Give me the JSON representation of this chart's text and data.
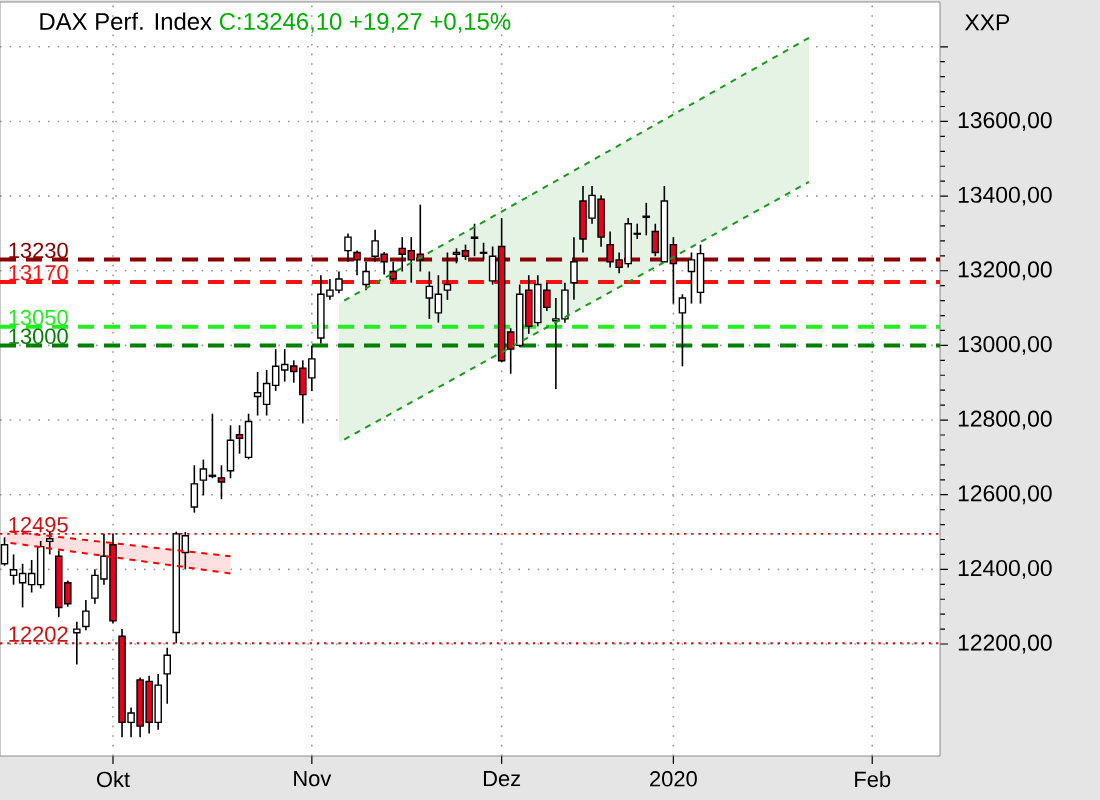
{
  "chart_data": {
    "type": "candlestick",
    "title": "DAX Perf. Index",
    "subtitle": "C:13246,10 +19,27 +0,15%",
    "ylabel": "XXP",
    "categories": [
      null,
      null,
      null,
      null,
      null,
      null,
      null,
      null,
      null,
      null,
      null,
      null,
      "Okt",
      null,
      null,
      null,
      null,
      null,
      null,
      null,
      null,
      null,
      null,
      null,
      null,
      null,
      null,
      null,
      null,
      null,
      null,
      null,
      null,
      null,
      "Nov",
      null,
      null,
      null,
      null,
      null,
      null,
      null,
      null,
      null,
      null,
      null,
      null,
      null,
      null,
      null,
      null,
      null,
      null,
      null,
      null,
      "Dez",
      null,
      null,
      null,
      null,
      null,
      null,
      null,
      null,
      null,
      null,
      null,
      null,
      null,
      null,
      null,
      null,
      null,
      null,
      "2020",
      null,
      null,
      null,
      null,
      null,
      null,
      null,
      null,
      null,
      null,
      null,
      null,
      null,
      null,
      null,
      null,
      null,
      null,
      null,
      null,
      null,
      "Feb",
      null,
      null,
      null,
      null,
      null,
      null,
      null
    ],
    "ohlc": [
      [
        12415,
        12486,
        12410,
        12466
      ],
      [
        12384,
        12440,
        12359,
        12399
      ],
      [
        12364,
        12415,
        12298,
        12389
      ],
      [
        12359,
        12425,
        12338,
        12389
      ],
      [
        12359,
        12476,
        12349,
        12461
      ],
      [
        12475,
        12500,
        12440,
        12482
      ],
      [
        12435,
        12450,
        12272,
        12298
      ],
      [
        12364,
        12370,
        12300,
        12308
      ],
      [
        12230,
        12260,
        12145,
        12240
      ],
      [
        12247,
        12318,
        12237,
        12288
      ],
      [
        12323,
        12400,
        12308,
        12384
      ],
      [
        12374,
        12496,
        12359,
        12435
      ],
      [
        12466,
        12496,
        12255,
        12262
      ],
      [
        12221,
        12240,
        11950,
        11990
      ],
      [
        11990,
        12030,
        11950,
        12015
      ],
      [
        12104,
        12110,
        11950,
        11980
      ],
      [
        12100,
        12115,
        11960,
        11990
      ],
      [
        11990,
        12120,
        11970,
        12090
      ],
      [
        12120,
        12190,
        12040,
        12170
      ],
      [
        12231,
        12501,
        12202,
        12495
      ],
      [
        12445,
        12500,
        12400,
        12490
      ],
      [
        12567,
        12679,
        12552,
        12629
      ],
      [
        12639,
        12694,
        12598,
        12669
      ],
      [
        12649,
        12817,
        12644,
        12652
      ],
      [
        12645,
        12679,
        12588,
        12634
      ],
      [
        12664,
        12786,
        12644,
        12746
      ],
      [
        12761,
        12786,
        12710,
        12751
      ],
      [
        12700,
        12817,
        12695,
        12796
      ],
      [
        12863,
        12929,
        12812,
        12873
      ],
      [
        12842,
        12934,
        12812,
        12898
      ],
      [
        12893,
        12990,
        12878,
        12944
      ],
      [
        12934,
        12990,
        12903,
        12949
      ],
      [
        12945,
        12960,
        12900,
        12930
      ],
      [
        12939,
        12960,
        12791,
        12868
      ],
      [
        12913,
        13000,
        12878,
        12964
      ],
      [
        13020,
        13188,
        13005,
        13137
      ],
      [
        13132,
        13178,
        13122,
        13148
      ],
      [
        13148,
        13198,
        13140,
        13178
      ],
      [
        13254,
        13300,
        13224,
        13290
      ],
      [
        13249,
        13254,
        13188,
        13229
      ],
      [
        13163,
        13224,
        13148,
        13198
      ],
      [
        13239,
        13310,
        13224,
        13280
      ],
      [
        13244,
        13250,
        13190,
        13224
      ],
      [
        13198,
        13224,
        13170,
        13178
      ],
      [
        13260,
        13290,
        13198,
        13244
      ],
      [
        13254,
        13290,
        13168,
        13229
      ],
      [
        13244,
        13377,
        13198,
        13229
      ],
      [
        13127,
        13198,
        13071,
        13158
      ],
      [
        13087,
        13188,
        13061,
        13137
      ],
      [
        13148,
        13249,
        13122,
        13163
      ],
      [
        13244,
        13260,
        13220,
        13249
      ],
      [
        13254,
        13270,
        13229,
        13239
      ],
      [
        13287,
        13326,
        13239,
        13290
      ],
      [
        13247,
        13275,
        13229,
        13249
      ],
      [
        13173,
        13265,
        13163,
        13239
      ],
      [
        13265,
        13341,
        12955,
        12959
      ],
      [
        13036,
        13046,
        12924,
        12990
      ],
      [
        13000,
        13163,
        12995,
        13137
      ],
      [
        13148,
        13188,
        13031,
        13051
      ],
      [
        13061,
        13188,
        13051,
        13163
      ],
      [
        13148,
        13168,
        13092,
        13102
      ],
      [
        13066,
        13127,
        12883,
        13071
      ],
      [
        13071,
        13168,
        13061,
        13148
      ],
      [
        13168,
        13290,
        13122,
        13224
      ],
      [
        13387,
        13427,
        13249,
        13285
      ],
      [
        13341,
        13427,
        13326,
        13402
      ],
      [
        13392,
        13402,
        13264,
        13290
      ],
      [
        13270,
        13305,
        13209,
        13224
      ],
      [
        13229,
        13249,
        13193,
        13209
      ],
      [
        13219,
        13341,
        13209,
        13326
      ],
      [
        13298,
        13326,
        13285,
        13300
      ],
      [
        13343,
        13382,
        13295,
        13346
      ],
      [
        13305,
        13326,
        13239,
        13249
      ],
      [
        13224,
        13427,
        13224,
        13387
      ],
      [
        13270,
        13290,
        13112,
        13219
      ],
      [
        13087,
        13137,
        12944,
        13127
      ],
      [
        13198,
        13249,
        13112,
        13229
      ],
      [
        13142,
        13270,
        13112,
        13246
      ],
      null,
      null,
      null,
      null,
      null,
      null,
      null,
      null,
      null,
      null,
      null,
      null,
      null,
      null,
      null,
      null,
      null,
      null,
      null,
      null,
      null,
      null,
      null,
      null,
      null,
      null
    ],
    "ylim": [
      11900,
      13920
    ],
    "yticks": [
      {
        "value": 12200,
        "label": "12200,00"
      },
      {
        "value": 12400,
        "label": "12400,00"
      },
      {
        "value": 12600,
        "label": "12600,00"
      },
      {
        "value": 12800,
        "label": "12800,00"
      },
      {
        "value": 13000,
        "label": "13000,00"
      },
      {
        "value": 13200,
        "label": "13200,00"
      },
      {
        "value": 13400,
        "label": "13400,00"
      },
      {
        "value": 13600,
        "label": "13600,00"
      },
      {
        "value": 13800,
        "label": null
      }
    ],
    "grid": true,
    "series": [
      {
        "type": "line",
        "color": "#ff0000",
        "line_style": "dashed",
        "values": [
          12503,
          null,
          null,
          null,
          null,
          null,
          null,
          null,
          null,
          null,
          null,
          null,
          null,
          null,
          null,
          null,
          null,
          null,
          null,
          null,
          null,
          null,
          null,
          null,
          null,
          12435,
          null,
          null,
          null,
          null,
          null,
          null,
          null,
          null,
          null,
          null,
          null,
          null,
          null,
          null,
          null,
          null,
          null,
          null,
          null,
          null,
          null,
          null,
          null,
          null,
          null,
          null,
          null,
          null,
          null,
          null,
          null,
          null,
          null,
          null,
          null,
          null,
          null,
          null,
          null,
          null,
          null,
          null,
          null,
          null,
          null,
          null,
          null,
          null,
          null,
          null,
          null,
          null,
          null,
          null,
          null,
          null,
          null,
          null,
          null,
          null,
          null,
          null,
          null,
          null,
          null,
          null,
          null,
          null,
          null,
          null,
          null,
          null,
          null,
          null,
          null,
          null,
          null,
          null
        ],
        "lower": [
          12473,
          null,
          null,
          null,
          null,
          null,
          null,
          null,
          null,
          null,
          null,
          null,
          null,
          null,
          null,
          null,
          null,
          null,
          null,
          null,
          null,
          null,
          null,
          null,
          null,
          12389,
          null,
          null,
          null,
          null,
          null,
          null,
          null,
          null,
          null,
          null,
          null,
          null,
          null,
          null,
          null,
          null,
          null,
          null,
          null,
          null,
          null,
          null,
          null,
          null,
          null,
          null,
          null,
          null,
          null,
          null,
          null,
          null,
          null,
          null,
          null,
          null,
          null,
          null,
          null,
          null,
          null,
          null,
          null,
          null,
          null,
          null,
          null,
          null,
          null,
          null,
          null,
          null,
          null,
          null,
          null,
          null,
          null,
          null,
          null,
          null,
          null,
          null,
          null,
          null,
          null,
          null,
          null,
          null,
          null,
          null,
          null,
          null,
          null,
          null,
          null,
          null,
          null,
          null
        ],
        "upper": [
          12503,
          null,
          null,
          null,
          null,
          null,
          null,
          null,
          null,
          null,
          null,
          null,
          null,
          null,
          null,
          null,
          null,
          null,
          null,
          null,
          null,
          null,
          null,
          null,
          null,
          12435,
          null,
          null,
          null,
          null,
          null,
          null,
          null,
          null,
          null,
          null,
          null,
          null,
          null,
          null,
          null,
          null,
          null,
          null,
          null,
          null,
          null,
          null,
          null,
          null,
          null,
          null,
          null,
          null,
          null,
          null,
          null,
          null,
          null,
          null,
          null,
          null,
          null,
          null,
          null,
          null,
          null,
          null,
          null,
          null,
          null,
          null,
          null,
          null,
          null,
          null,
          null,
          null,
          null,
          null,
          null,
          null,
          null,
          null,
          null,
          null,
          null,
          null,
          null,
          null,
          null,
          null,
          null,
          null,
          null,
          null,
          null,
          null,
          null,
          null,
          null,
          null,
          null,
          null
        ]
      },
      {
        "type": "line",
        "color": "#ff0000",
        "line_style": "dashed",
        "values": [
          12473,
          null,
          null,
          null,
          null,
          null,
          null,
          null,
          null,
          null,
          null,
          null,
          null,
          null,
          null,
          null,
          null,
          null,
          null,
          null,
          null,
          null,
          null,
          null,
          null,
          12389,
          null,
          null,
          null,
          null,
          null,
          null,
          null,
          null,
          null,
          null,
          null,
          null,
          null,
          null,
          null,
          null,
          null,
          null,
          null,
          null,
          null,
          null,
          null,
          null,
          null,
          null,
          null,
          null,
          null,
          null,
          null,
          null,
          null,
          null,
          null,
          null,
          null,
          null,
          null,
          null,
          null,
          null,
          null,
          null,
          null,
          null,
          null,
          null,
          null,
          null,
          null,
          null,
          null,
          null,
          null,
          null,
          null,
          null,
          null,
          null,
          null,
          null,
          null,
          null,
          null,
          null,
          null,
          null,
          null,
          null,
          null,
          null,
          null,
          null,
          null,
          null,
          null,
          null
        ]
      },
      {
        "type": "line",
        "color": "#1a9a1a",
        "line_style": "dashed",
        "values": [
          null,
          null,
          null,
          null,
          null,
          null,
          null,
          null,
          null,
          null,
          null,
          null,
          null,
          null,
          null,
          null,
          null,
          null,
          null,
          null,
          null,
          null,
          null,
          null,
          null,
          null,
          null,
          null,
          null,
          null,
          null,
          null,
          null,
          null,
          null,
          null,
          null,
          13112,
          null,
          null,
          null,
          null,
          null,
          null,
          null,
          null,
          null,
          null,
          null,
          null,
          null,
          null,
          null,
          null,
          null,
          null,
          null,
          null,
          null,
          null,
          null,
          null,
          null,
          null,
          null,
          null,
          null,
          null,
          null,
          null,
          null,
          null,
          null,
          null,
          null,
          null,
          null,
          null,
          null,
          null,
          null,
          null,
          null,
          null,
          null,
          null,
          null,
          null,
          null,
          13824,
          null,
          null,
          null,
          null,
          null,
          null,
          null,
          null,
          null,
          null,
          null,
          null,
          null,
          null
        ],
        "lower": [
          null,
          null,
          null,
          null,
          null,
          null,
          null,
          null,
          null,
          null,
          null,
          null,
          null,
          null,
          null,
          null,
          null,
          null,
          null,
          null,
          null,
          null,
          null,
          null,
          null,
          null,
          null,
          null,
          null,
          null,
          null,
          null,
          null,
          null,
          null,
          null,
          null,
          12740,
          null,
          null,
          null,
          null,
          null,
          null,
          null,
          null,
          null,
          null,
          null,
          null,
          null,
          null,
          null,
          null,
          null,
          null,
          null,
          null,
          null,
          null,
          null,
          null,
          null,
          null,
          null,
          null,
          null,
          null,
          null,
          null,
          null,
          null,
          null,
          null,
          null,
          null,
          null,
          null,
          null,
          null,
          null,
          null,
          null,
          null,
          null,
          null,
          null,
          null,
          null,
          13438,
          null,
          null,
          null,
          null,
          null,
          null,
          null,
          null,
          null,
          null,
          null,
          null,
          null,
          null
        ],
        "upper": [
          null,
          null,
          null,
          null,
          null,
          null,
          null,
          null,
          null,
          null,
          null,
          null,
          null,
          null,
          null,
          null,
          null,
          null,
          null,
          null,
          null,
          null,
          null,
          null,
          null,
          null,
          null,
          null,
          null,
          null,
          null,
          null,
          null,
          null,
          null,
          null,
          null,
          13112,
          null,
          null,
          null,
          null,
          null,
          null,
          null,
          null,
          null,
          null,
          null,
          null,
          null,
          null,
          null,
          null,
          null,
          null,
          null,
          null,
          null,
          null,
          null,
          null,
          null,
          null,
          null,
          null,
          null,
          null,
          null,
          null,
          null,
          null,
          null,
          null,
          null,
          null,
          null,
          null,
          null,
          null,
          null,
          null,
          null,
          null,
          null,
          null,
          null,
          null,
          null,
          13824,
          null,
          null,
          null,
          null,
          null,
          null,
          null,
          null,
          null,
          null,
          null,
          null,
          null,
          null
        ]
      },
      {
        "type": "line",
        "color": "#1a9a1a",
        "line_style": "dashed",
        "values": [
          null,
          null,
          null,
          null,
          null,
          null,
          null,
          null,
          null,
          null,
          null,
          null,
          null,
          null,
          null,
          null,
          null,
          null,
          null,
          null,
          null,
          null,
          null,
          null,
          null,
          null,
          null,
          null,
          null,
          null,
          null,
          null,
          null,
          null,
          null,
          null,
          null,
          12740,
          null,
          null,
          null,
          null,
          null,
          null,
          null,
          null,
          null,
          null,
          null,
          null,
          null,
          null,
          null,
          null,
          null,
          null,
          null,
          null,
          null,
          null,
          null,
          null,
          null,
          null,
          null,
          null,
          null,
          null,
          null,
          null,
          null,
          null,
          null,
          null,
          null,
          null,
          null,
          null,
          null,
          null,
          null,
          null,
          null,
          null,
          null,
          null,
          null,
          null,
          null,
          13438,
          null,
          null,
          null,
          null,
          null,
          null,
          null,
          null,
          null,
          null,
          null,
          null,
          null,
          null
        ]
      }
    ],
    "ref_lines": [
      {
        "axis": "y",
        "value": 13230,
        "label": "13230",
        "color": "#8b0000",
        "line_style": "dashed"
      },
      {
        "axis": "y",
        "value": 13170,
        "label": "13170",
        "color": "#ff1010",
        "line_style": "dashed"
      },
      {
        "axis": "y",
        "value": 13050,
        "label": "13050",
        "color": "#22ee22",
        "line_style": "dashed"
      },
      {
        "axis": "y",
        "value": 13000,
        "label": "13000",
        "color": "#008000",
        "line_style": "dashed"
      },
      {
        "axis": "y",
        "value": 12495,
        "label": "12495",
        "color": "#d01010",
        "line_style": "dotted"
      },
      {
        "axis": "y",
        "value": 12202,
        "label": "12202",
        "color": "#d01010",
        "line_style": "dotted"
      }
    ]
  }
}
